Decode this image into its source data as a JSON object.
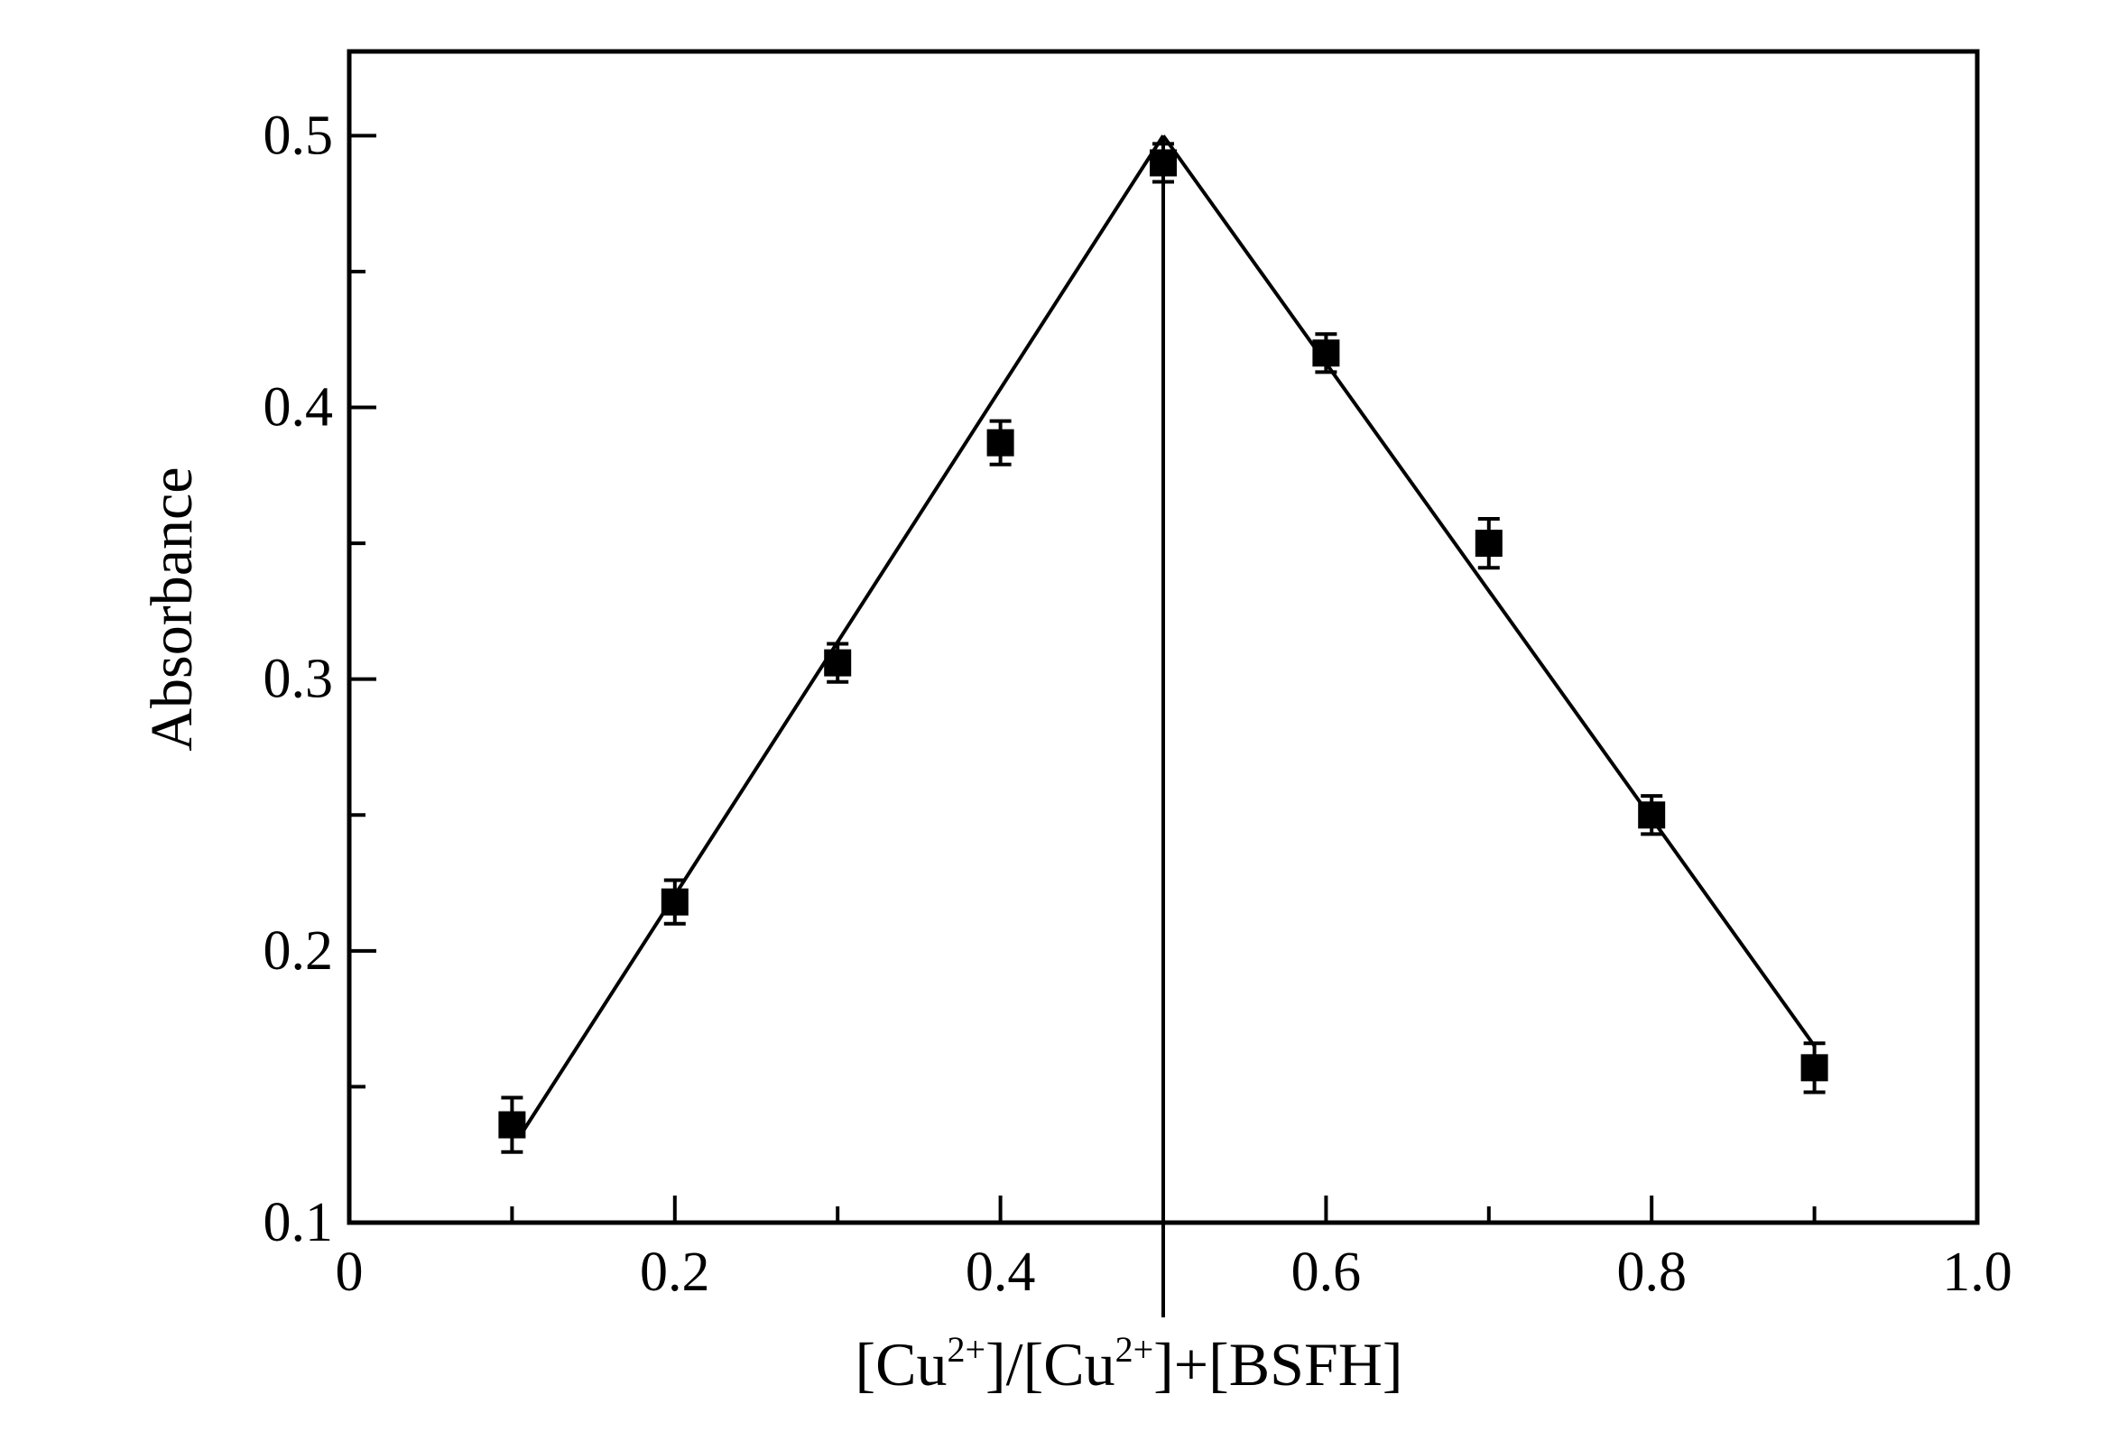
{
  "chart_data": {
    "type": "scatter",
    "ylabel": "Absorbance",
    "xlabel_parts": [
      "[Cu",
      "2+",
      "]/[Cu",
      "2+",
      "]+[BSFH]"
    ],
    "xlim": [
      0,
      1.0
    ],
    "ylim": [
      0.1,
      0.531
    ],
    "xticks": [
      0,
      0.2,
      0.4,
      0.6,
      0.8,
      {
        "value": 1.0,
        "label": "1.0"
      }
    ],
    "xminorticks": [
      0.1,
      0.3,
      0.5,
      0.7,
      0.9
    ],
    "yticks": [
      0.1,
      0.2,
      0.3,
      0.4,
      0.5
    ],
    "yminorticks": [
      0.15,
      0.25,
      0.35,
      0.45
    ],
    "color": "#000000",
    "series": [
      {
        "x": [
          0.1,
          0.2,
          0.3,
          0.4,
          0.5,
          0.6,
          0.7,
          0.8,
          0.9
        ],
        "values": [
          0.136,
          0.218,
          0.306,
          0.387,
          0.49,
          0.42,
          0.35,
          0.25,
          0.157
        ],
        "errors": [
          0.01,
          0.008,
          0.007,
          0.008,
          0.007,
          0.007,
          0.009,
          0.007,
          0.009
        ]
      }
    ],
    "fit_lines": [
      {
        "x": [
          0.105,
          0.5
        ],
        "values": [
          0.132,
          0.5
        ]
      },
      {
        "x": [
          0.5,
          0.9
        ],
        "values": [
          0.5,
          0.165
        ]
      }
    ],
    "vertical_line_x": 0.5
  }
}
